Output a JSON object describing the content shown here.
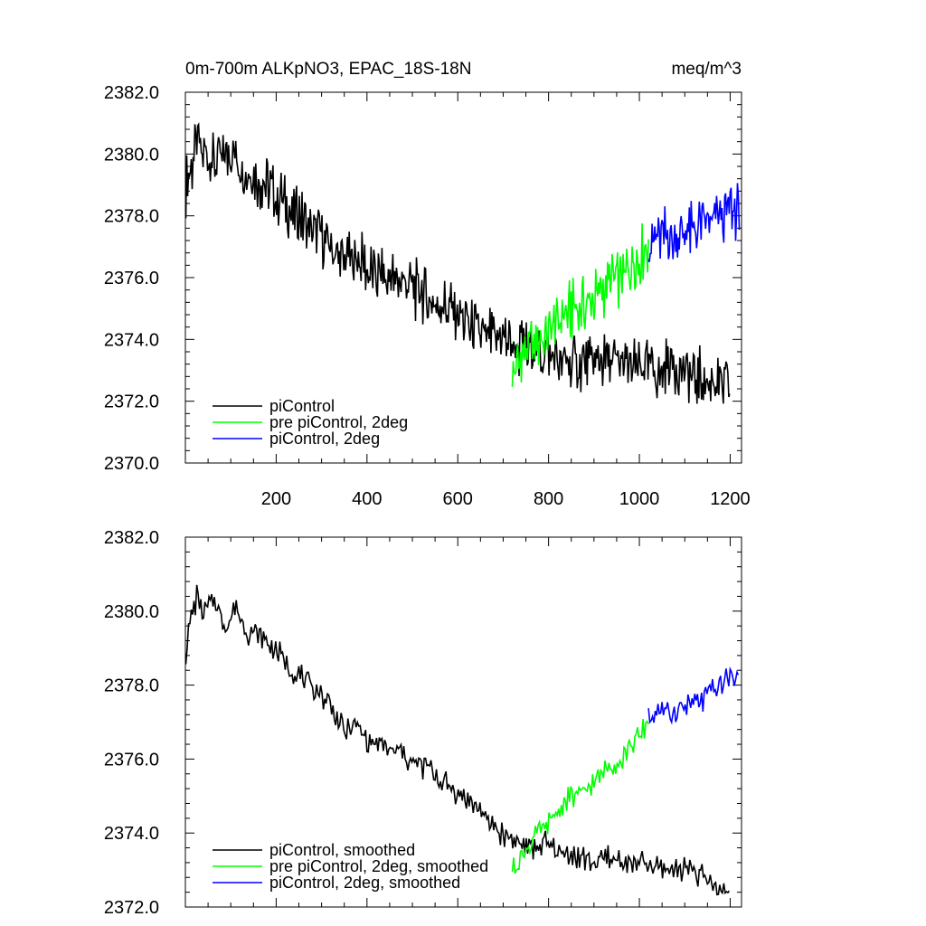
{
  "colors": {
    "piControl": "#000000",
    "pre_piControl_2deg": "#00ff00",
    "piControl_2deg": "#0000ff"
  },
  "chart_data": [
    {
      "type": "line",
      "title": "0m-700m ALKpNO3, EPAC_18S-18N",
      "units": "meq/m^3",
      "xlim": [
        0,
        1225
      ],
      "ylim": [
        2370.0,
        2382.0
      ],
      "yticks": [
        "2370.0",
        "2372.0",
        "2374.0",
        "2376.0",
        "2378.0",
        "2380.0",
        "2382.0"
      ],
      "xticks": [
        "200",
        "400",
        "600",
        "800",
        "1000",
        "1200"
      ],
      "legend_position": "bottom-left",
      "series": [
        {
          "name": "piControl",
          "color": "#000000",
          "x": [
            1,
            25,
            50,
            75,
            100,
            125,
            150,
            175,
            200,
            225,
            250,
            275,
            300,
            325,
            350,
            375,
            400,
            425,
            450,
            475,
            500,
            525,
            550,
            575,
            600,
            625,
            650,
            675,
            700,
            725,
            750,
            775,
            800,
            825,
            850,
            875,
            900,
            925,
            950,
            975,
            1000,
            1025,
            1050,
            1075,
            1100,
            1125,
            1150,
            1175,
            1200
          ],
          "y": [
            2379.0,
            2380.2,
            2380.0,
            2379.8,
            2380.0,
            2379.6,
            2379.3,
            2379.0,
            2378.6,
            2378.3,
            2378.0,
            2377.6,
            2377.3,
            2376.9,
            2376.5,
            2376.7,
            2376.3,
            2376.1,
            2376.0,
            2375.9,
            2375.7,
            2375.4,
            2375.2,
            2375.0,
            2374.8,
            2374.5,
            2374.2,
            2374.1,
            2374.0,
            2373.7,
            2373.6,
            2373.7,
            2373.5,
            2373.3,
            2373.3,
            2373.2,
            2373.3,
            2373.3,
            2373.2,
            2373.2,
            2373.1,
            2373.0,
            2373.0,
            2373.2,
            2373.0,
            2372.8,
            2372.7,
            2372.6,
            2372.4
          ]
        },
        {
          "name": "pre piControl, 2deg",
          "color": "#00ff00",
          "x": [
            720,
            740,
            760,
            780,
            800,
            820,
            840,
            860,
            880,
            900,
            920,
            940,
            960,
            980,
            1000,
            1020
          ],
          "y": [
            2373.1,
            2373.4,
            2373.7,
            2374.0,
            2374.2,
            2374.6,
            2374.9,
            2375.0,
            2375.1,
            2375.4,
            2375.6,
            2375.9,
            2376.0,
            2376.4,
            2376.6,
            2377.1
          ]
        },
        {
          "name": "piControl, 2deg",
          "color": "#0000ff",
          "x": [
            1020,
            1040,
            1060,
            1080,
            1100,
            1120,
            1140,
            1160,
            1180,
            1200,
            1220
          ],
          "y": [
            2377.2,
            2377.4,
            2377.4,
            2377.3,
            2377.5,
            2377.5,
            2377.6,
            2377.8,
            2378.0,
            2378.2,
            2378.1
          ]
        }
      ]
    },
    {
      "type": "line",
      "xlim": [
        0,
        1225
      ],
      "ylim": [
        2372.0,
        2382.0
      ],
      "yticks": [
        "2372.0",
        "2374.0",
        "2376.0",
        "2378.0",
        "2380.0",
        "2382.0"
      ],
      "legend_position": "bottom-left",
      "series": [
        {
          "name": "piControl, smoothed",
          "color": "#000000",
          "x": [
            1,
            12,
            25,
            40,
            55,
            70,
            85,
            100,
            115,
            130,
            150,
            175,
            200,
            225,
            250,
            275,
            300,
            325,
            350,
            375,
            400,
            425,
            450,
            475,
            500,
            525,
            550,
            575,
            600,
            625,
            650,
            675,
            700,
            725,
            750,
            775,
            800,
            825,
            850,
            875,
            900,
            925,
            950,
            975,
            1000,
            1025,
            1050,
            1075,
            1100,
            1125,
            1150,
            1175,
            1200
          ],
          "y": [
            2378.9,
            2379.8,
            2380.4,
            2379.8,
            2380.3,
            2380.2,
            2379.6,
            2379.9,
            2380.1,
            2379.5,
            2379.4,
            2379.2,
            2379.0,
            2378.5,
            2378.3,
            2377.9,
            2377.8,
            2377.3,
            2376.8,
            2376.9,
            2376.5,
            2376.4,
            2376.2,
            2376.2,
            2375.9,
            2375.8,
            2375.6,
            2375.3,
            2375.1,
            2374.9,
            2374.6,
            2374.2,
            2374.0,
            2373.8,
            2373.6,
            2373.6,
            2373.7,
            2373.5,
            2373.4,
            2373.3,
            2373.2,
            2373.3,
            2373.3,
            2373.2,
            2373.2,
            2373.1,
            2373.0,
            2373.0,
            2373.1,
            2372.9,
            2372.7,
            2372.5,
            2372.3
          ]
        },
        {
          "name": "pre piControl, 2deg, smoothed",
          "color": "#00ff00",
          "x": [
            720,
            740,
            760,
            780,
            800,
            820,
            840,
            860,
            880,
            900,
            920,
            940,
            960,
            980,
            1000,
            1020
          ],
          "y": [
            2373.1,
            2373.4,
            2373.7,
            2374.0,
            2374.2,
            2374.6,
            2374.9,
            2375.0,
            2375.1,
            2375.4,
            2375.6,
            2375.9,
            2376.0,
            2376.4,
            2376.6,
            2377.0
          ]
        },
        {
          "name": "piControl, 2deg, smoothed",
          "color": "#0000ff",
          "x": [
            1020,
            1040,
            1060,
            1080,
            1100,
            1120,
            1140,
            1160,
            1180,
            1200,
            1220
          ],
          "y": [
            2377.1,
            2377.4,
            2377.3,
            2377.3,
            2377.5,
            2377.5,
            2377.6,
            2377.8,
            2378.0,
            2378.2,
            2378.1
          ]
        }
      ]
    }
  ]
}
